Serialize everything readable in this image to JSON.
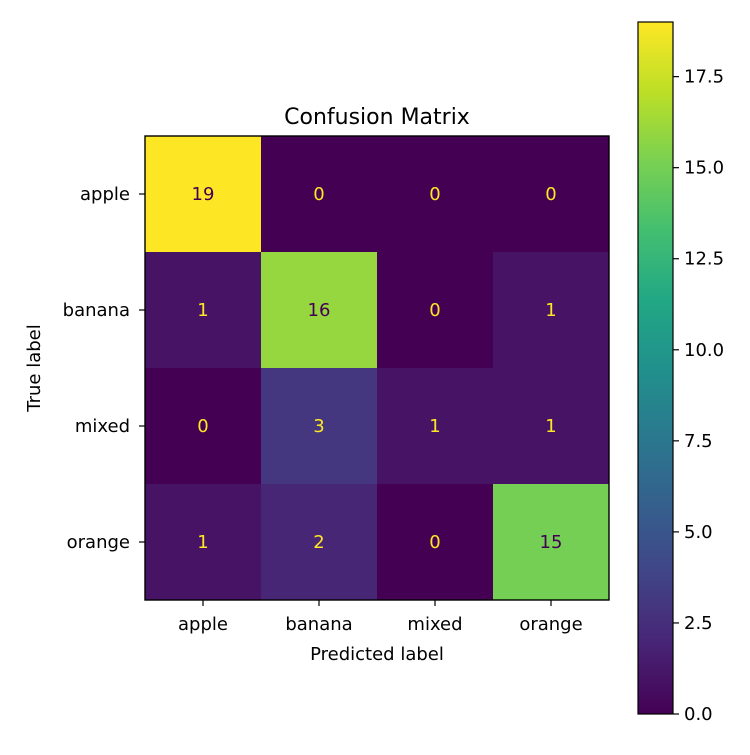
{
  "chart_data": {
    "type": "heatmap",
    "title": "Confusion Matrix",
    "xlabel": "Predicted label",
    "ylabel": "True label",
    "x_categories": [
      "apple",
      "banana",
      "mixed",
      "orange"
    ],
    "y_categories": [
      "apple",
      "banana",
      "mixed",
      "orange"
    ],
    "values": [
      [
        19,
        0,
        0,
        0
      ],
      [
        1,
        16,
        0,
        1
      ],
      [
        0,
        3,
        1,
        1
      ],
      [
        1,
        2,
        0,
        15
      ]
    ],
    "colormap": "viridis",
    "color_range": [
      0,
      19
    ],
    "colorbar_ticks": [
      "0.0",
      "2.5",
      "5.0",
      "7.5",
      "10.0",
      "12.5",
      "15.0",
      "17.5"
    ],
    "colorbar_tick_values": [
      0,
      2.5,
      5,
      7.5,
      10,
      12.5,
      15,
      17.5
    ],
    "grid": false
  }
}
